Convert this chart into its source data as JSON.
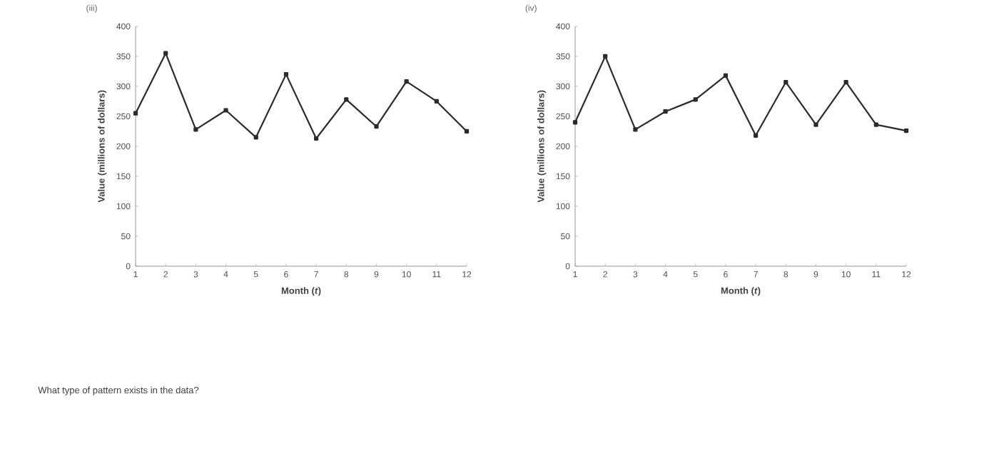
{
  "chart_data": [
    {
      "type": "line",
      "title": "(iii)",
      "xlabel": "Month (*t*)",
      "ylabel": "Value (millions of dollars)",
      "x": [
        1,
        2,
        3,
        4,
        5,
        6,
        7,
        8,
        9,
        10,
        11,
        12
      ],
      "series": [
        {
          "color": "#2b2b2b",
          "values": [
            255,
            355,
            228,
            260,
            215,
            320,
            213,
            278,
            233,
            308,
            275,
            225
          ]
        }
      ],
      "xlim": [
        1,
        12
      ],
      "xticks": [
        1,
        2,
        3,
        4,
        5,
        6,
        7,
        8,
        9,
        10,
        11,
        12
      ],
      "ylim": [
        0,
        400
      ],
      "yticks": [
        0,
        50,
        100,
        150,
        200,
        250,
        300,
        350,
        400
      ],
      "marker": "square",
      "annotations": [
        "What type of pattern exists in the data?"
      ]
    },
    {
      "type": "line",
      "title": "(iv)",
      "xlabel": "Month (*t*)",
      "ylabel": "Value (millions of dollars)",
      "x": [
        1,
        2,
        3,
        4,
        5,
        6,
        7,
        8,
        9,
        10,
        11,
        12
      ],
      "series": [
        {
          "color": "#2b2b2b",
          "values": [
            240,
            350,
            228,
            258,
            278,
            318,
            218,
            307,
            236,
            307,
            236,
            226
          ]
        }
      ],
      "xlim": [
        1,
        12
      ],
      "xticks": [
        1,
        2,
        3,
        4,
        5,
        6,
        7,
        8,
        9,
        10,
        11,
        12
      ],
      "ylim": [
        0,
        400
      ],
      "yticks": [
        0,
        50,
        100,
        150,
        200,
        250,
        300,
        350,
        400
      ],
      "marker": "square"
    }
  ]
}
